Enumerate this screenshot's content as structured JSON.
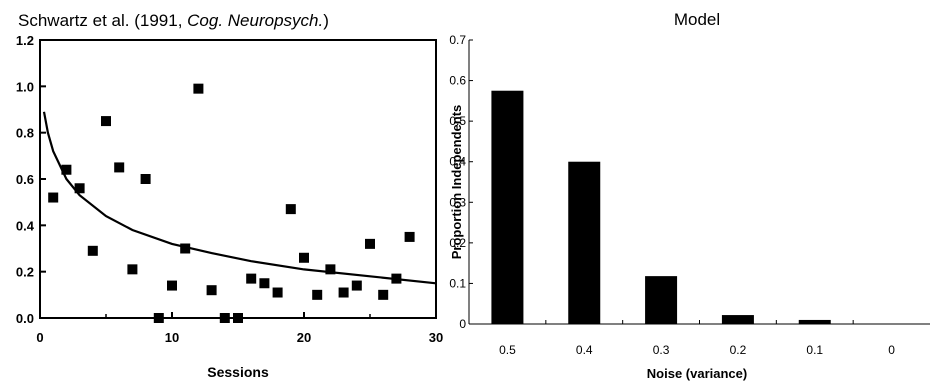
{
  "chart_data": [
    {
      "type": "scatter",
      "title_plain": "Schwartz et al. (1991, ",
      "title_italic": "Cog. Neuropsych.",
      "title_end": ")",
      "xlabel": "Sessions",
      "ylabel": "",
      "xlim": [
        0,
        30
      ],
      "ylim": [
        0,
        1.2
      ],
      "xticks": [
        "0",
        "10",
        "20",
        "30"
      ],
      "yticks": [
        "0.0",
        "0.2",
        "0.4",
        "0.6",
        "0.8",
        "1.0",
        "1.2"
      ],
      "grid": false,
      "points": [
        {
          "x": 1,
          "y": 0.52
        },
        {
          "x": 2,
          "y": 0.64
        },
        {
          "x": 3,
          "y": 0.56
        },
        {
          "x": 4,
          "y": 0.29
        },
        {
          "x": 5,
          "y": 0.85
        },
        {
          "x": 6,
          "y": 0.65
        },
        {
          "x": 7,
          "y": 0.21
        },
        {
          "x": 8,
          "y": 0.6
        },
        {
          "x": 9,
          "y": 0.0
        },
        {
          "x": 10,
          "y": 0.14
        },
        {
          "x": 11,
          "y": 0.3
        },
        {
          "x": 12,
          "y": 0.99
        },
        {
          "x": 13,
          "y": 0.12
        },
        {
          "x": 14,
          "y": 0.0
        },
        {
          "x": 15,
          "y": 0.0
        },
        {
          "x": 16,
          "y": 0.17
        },
        {
          "x": 17,
          "y": 0.15
        },
        {
          "x": 18,
          "y": 0.11
        },
        {
          "x": 19,
          "y": 0.47
        },
        {
          "x": 20,
          "y": 0.26
        },
        {
          "x": 21,
          "y": 0.1
        },
        {
          "x": 22,
          "y": 0.21
        },
        {
          "x": 23,
          "y": 0.11
        },
        {
          "x": 24,
          "y": 0.14
        },
        {
          "x": 25,
          "y": 0.32
        },
        {
          "x": 26,
          "y": 0.1
        },
        {
          "x": 27,
          "y": 0.17
        },
        {
          "x": 28,
          "y": 0.35
        }
      ],
      "fit_curve": [
        {
          "x": 0.3,
          "y": 0.89
        },
        {
          "x": 0.6,
          "y": 0.8
        },
        {
          "x": 1,
          "y": 0.72
        },
        {
          "x": 2,
          "y": 0.6
        },
        {
          "x": 3,
          "y": 0.53
        },
        {
          "x": 5,
          "y": 0.44
        },
        {
          "x": 7,
          "y": 0.38
        },
        {
          "x": 10,
          "y": 0.32
        },
        {
          "x": 13,
          "y": 0.28
        },
        {
          "x": 16,
          "y": 0.245
        },
        {
          "x": 20,
          "y": 0.21
        },
        {
          "x": 25,
          "y": 0.18
        },
        {
          "x": 30,
          "y": 0.15
        }
      ]
    },
    {
      "type": "bar",
      "title": "Model",
      "xlabel": "Noise (variance)",
      "ylabel": "Proportion Independents",
      "categories": [
        "0.5",
        "0.4",
        "0.3",
        "0.2",
        "0.1",
        "0"
      ],
      "values": [
        0.575,
        0.4,
        0.118,
        0.022,
        0.01,
        0.0
      ],
      "ylim": [
        0,
        0.7
      ],
      "yticks": [
        "0",
        "0.1",
        "0.2",
        "0.3",
        "0.4",
        "0.5",
        "0.6",
        "0.7"
      ],
      "grid": false
    }
  ]
}
